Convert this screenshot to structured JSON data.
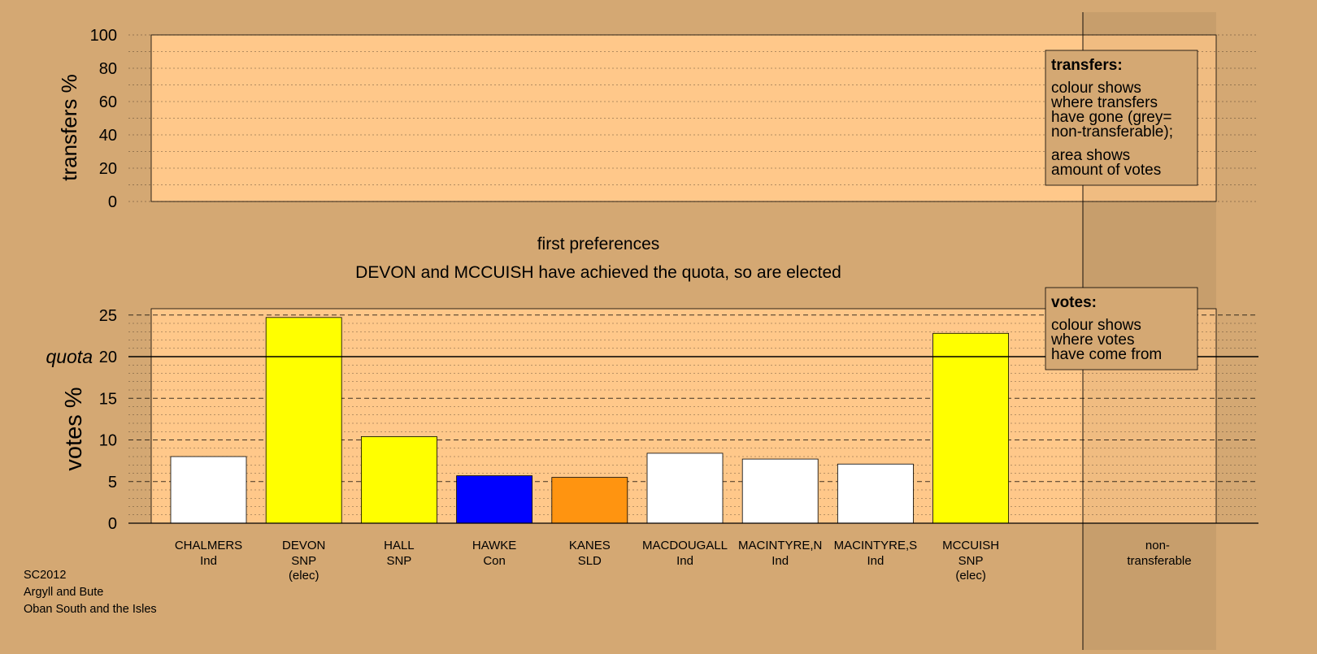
{
  "chart_data": {
    "type": "bar",
    "stage_title": "first preferences",
    "stage_subtitle": "DEVON and MCCUISH have achieved the quota, so are elected",
    "transfers_panel": {
      "ylabel": "transfers %",
      "ylim": [
        0,
        100
      ],
      "yticks": [
        "0",
        "20",
        "40",
        "60",
        "80",
        "100"
      ],
      "legend": {
        "title": "transfers:",
        "lines_a": [
          "colour shows",
          "where transfers",
          "have gone (grey=",
          "non-transferable);"
        ],
        "lines_b": [
          "area shows",
          "amount of votes"
        ]
      }
    },
    "votes_panel": {
      "ylabel": "votes %",
      "ylim": [
        0,
        25
      ],
      "yticks": [
        "0",
        "5",
        "10",
        "15",
        "20",
        "25"
      ],
      "quota_label": "quota",
      "quota": 20,
      "legend": {
        "title": "votes:",
        "lines": [
          "colour shows",
          "where votes",
          "have come from"
        ]
      }
    },
    "candidates": [
      {
        "name": "CHALMERS",
        "party": "Ind",
        "note": "",
        "value": 8.0,
        "color": "#ffffff"
      },
      {
        "name": "DEVON",
        "party": "SNP",
        "note": "(elec)",
        "value": 24.7,
        "color": "#ffff00"
      },
      {
        "name": "HALL",
        "party": "SNP",
        "note": "",
        "value": 10.4,
        "color": "#ffff00"
      },
      {
        "name": "HAWKE",
        "party": "Con",
        "note": "",
        "value": 5.7,
        "color": "#0000ff"
      },
      {
        "name": "KANES",
        "party": "SLD",
        "note": "",
        "value": 5.5,
        "color": "#ff9410"
      },
      {
        "name": "MACDOUGALL",
        "party": "Ind",
        "note": "",
        "value": 8.4,
        "color": "#ffffff"
      },
      {
        "name": "MACINTYRE,N",
        "party": "Ind",
        "note": "",
        "value": 7.7,
        "color": "#ffffff"
      },
      {
        "name": "MACINTYRE,S",
        "party": "Ind",
        "note": "",
        "value": 7.1,
        "color": "#ffffff"
      },
      {
        "name": "MCCUISH",
        "party": "SNP",
        "note": "(elec)",
        "value": 22.8,
        "color": "#ffff00"
      }
    ],
    "non_transferable_label": [
      "non-",
      "transferable"
    ],
    "footer": [
      "SC2012",
      "Argyll and Bute",
      "Oban South and the Isles"
    ],
    "colors": {
      "background": "#d4a873",
      "panel": "#ffc88a"
    }
  }
}
